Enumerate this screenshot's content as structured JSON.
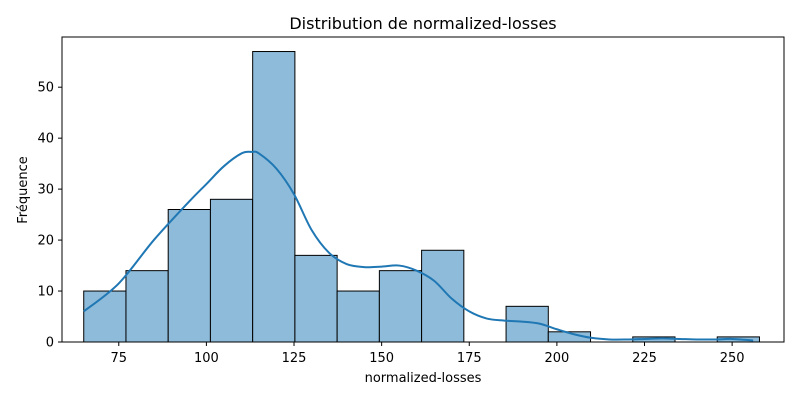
{
  "chart_data": {
    "type": "bar",
    "title": "Distribution de normalized-losses",
    "xlabel": "normalized-losses",
    "ylabel": "Fréquence",
    "xlim": [
      58.8,
      264.8
    ],
    "ylim": [
      0,
      59.85
    ],
    "xticks": [
      75,
      100,
      125,
      150,
      175,
      200,
      225,
      250
    ],
    "yticks": [
      0,
      10,
      20,
      30,
      40,
      50
    ],
    "bar_color": "#8ebbd9",
    "bar_edge_color": "#000000",
    "kde_color": "#1f77b4",
    "grid": false,
    "bins": [
      {
        "x0": 65.0,
        "x1": 77.05,
        "value": 10
      },
      {
        "x0": 77.05,
        "x1": 89.1,
        "value": 14
      },
      {
        "x0": 89.1,
        "x1": 101.15,
        "value": 26
      },
      {
        "x0": 101.15,
        "x1": 113.2,
        "value": 28
      },
      {
        "x0": 113.2,
        "x1": 125.25,
        "value": 57
      },
      {
        "x0": 125.25,
        "x1": 137.3,
        "value": 17
      },
      {
        "x0": 137.3,
        "x1": 149.35,
        "value": 10
      },
      {
        "x0": 149.35,
        "x1": 161.4,
        "value": 14
      },
      {
        "x0": 161.4,
        "x1": 173.45,
        "value": 18
      },
      {
        "x0": 173.45,
        "x1": 185.5,
        "value": 0
      },
      {
        "x0": 185.5,
        "x1": 197.55,
        "value": 7
      },
      {
        "x0": 197.55,
        "x1": 209.6,
        "value": 2
      },
      {
        "x0": 209.6,
        "x1": 221.65,
        "value": 0
      },
      {
        "x0": 221.65,
        "x1": 233.7,
        "value": 1
      },
      {
        "x0": 233.7,
        "x1": 245.75,
        "value": 0
      },
      {
        "x0": 245.75,
        "x1": 257.8,
        "value": 1
      }
    ],
    "kde": {
      "x": [
        65,
        75,
        85,
        95,
        100,
        105,
        110,
        113,
        115,
        120,
        125,
        130,
        135,
        140,
        145,
        150,
        155,
        160,
        165,
        170,
        175,
        180,
        185,
        190,
        195,
        200,
        205,
        210,
        215,
        220,
        225,
        230,
        235,
        240,
        245,
        250,
        256
      ],
      "y": [
        6,
        11.5,
        20,
        27.5,
        31,
        34.5,
        37,
        37.3,
        37,
        34,
        29,
        22,
        17.5,
        15.3,
        14.7,
        14.8,
        15,
        14,
        12,
        8.5,
        6,
        4.6,
        4.2,
        4,
        3.6,
        2.5,
        1.5,
        0.8,
        0.5,
        0.5,
        0.6,
        0.7,
        0.6,
        0.5,
        0.5,
        0.6,
        0.3
      ]
    }
  }
}
